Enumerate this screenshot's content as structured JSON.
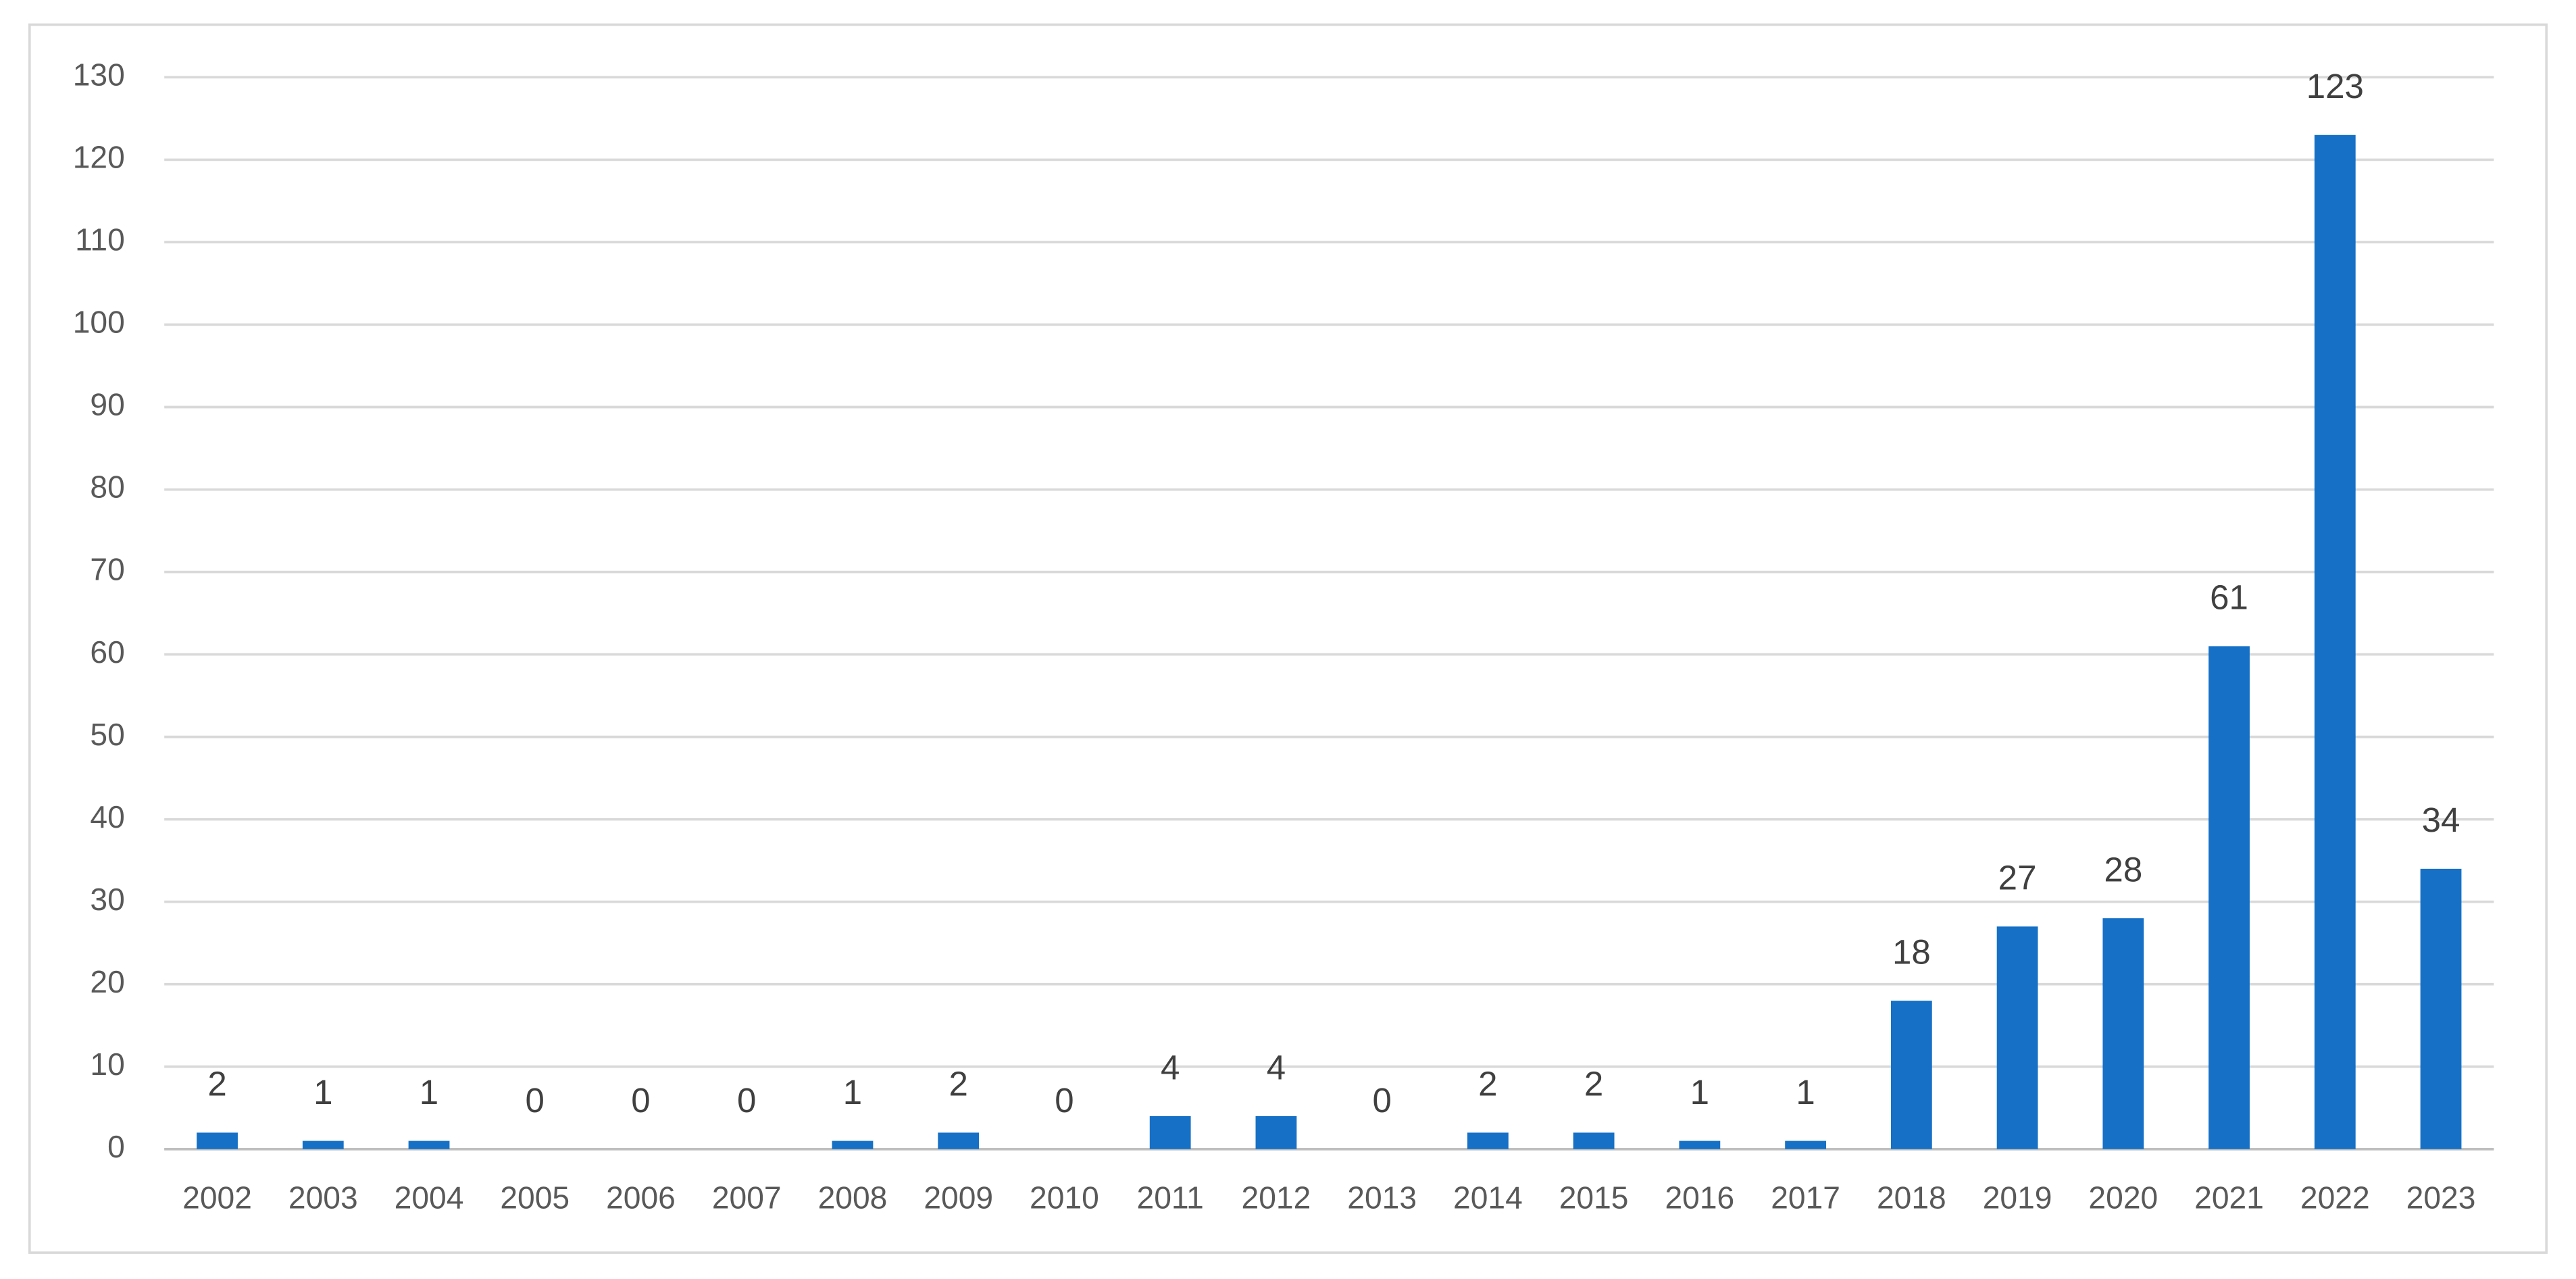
{
  "chart_data": {
    "type": "bar",
    "categories": [
      "2002",
      "2003",
      "2004",
      "2005",
      "2006",
      "2007",
      "2008",
      "2009",
      "2010",
      "2011",
      "2012",
      "2013",
      "2014",
      "2015",
      "2016",
      "2017",
      "2018",
      "2019",
      "2020",
      "2021",
      "2022",
      "2023"
    ],
    "values": [
      2,
      1,
      1,
      0,
      0,
      0,
      1,
      2,
      0,
      4,
      4,
      0,
      2,
      2,
      1,
      1,
      18,
      27,
      28,
      61,
      123,
      34
    ],
    "color": "#1570c6",
    "ylim": [
      0,
      130
    ],
    "yticks": [
      0,
      10,
      20,
      30,
      40,
      50,
      60,
      70,
      80,
      90,
      100,
      110,
      120,
      130
    ],
    "grid": true
  }
}
